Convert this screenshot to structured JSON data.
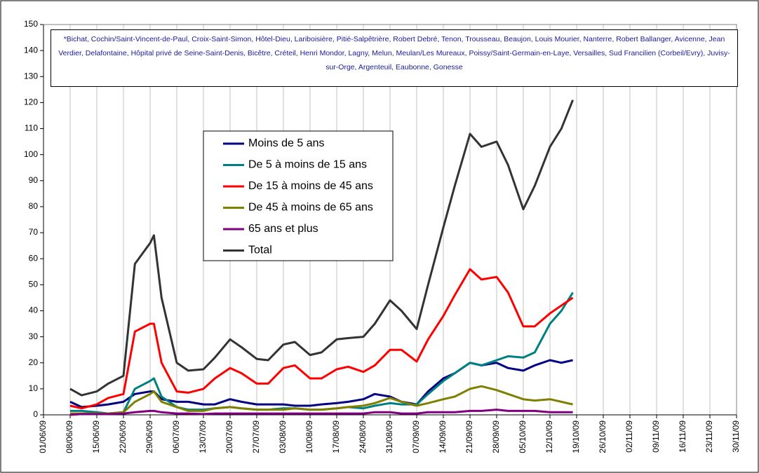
{
  "chart_data": {
    "type": "line",
    "note": "*Bichat, Cochin/Saint-Vincent-de-Paul, Croix-Saint-Simon, Hôtel-Dieu, Lariboisière, Pitié-Salpêtrière, Robert Debré, Tenon, Trousseau, Beaujon, Louis Mourier, Nanterre, Robert Ballanger, Avicenne, Jean Verdier, Delafontaine, Hôpital privé de Seine-Saint-Denis, Bicêtre, Créteil, Henri Mondor, Lagny, Melun, Meulan/Les Mureaux, Poissy/Saint-Germain-en-Laye, Versailles, Sud Francilien (Corbeil/Evry), Juvisy-sur-Orge, Argenteuil, Eaubonne, Gonesse",
    "x": [
      "08/06/09",
      "11/06/09",
      "15/06/09",
      "18/06/09",
      "22/06/09",
      "25/06/09",
      "29/06/09",
      "30/06/09",
      "02/07/09",
      "06/07/09",
      "09/07/09",
      "13/07/09",
      "16/07/09",
      "20/07/09",
      "23/07/09",
      "27/07/09",
      "30/07/09",
      "03/08/09",
      "06/08/09",
      "10/08/09",
      "13/08/09",
      "17/08/09",
      "20/08/09",
      "24/08/09",
      "27/08/09",
      "31/08/09",
      "03/09/09",
      "07/09/09",
      "10/09/09",
      "14/09/09",
      "17/09/09",
      "21/09/09",
      "24/09/09",
      "28/09/09",
      "01/10/09",
      "05/10/09",
      "08/10/09",
      "12/10/09",
      "15/10/09",
      "18/10/09"
    ],
    "series": [
      {
        "name": "Moins de 5 ans",
        "color": "#000080",
        "values": [
          5,
          3,
          3.5,
          4,
          5,
          8,
          9,
          9,
          6,
          5,
          5,
          4,
          4,
          6,
          5,
          4,
          4,
          4,
          3.5,
          3.5,
          4,
          4.5,
          5,
          6,
          8,
          7,
          5,
          4,
          9,
          14,
          16,
          20,
          19,
          20,
          18,
          17,
          19,
          21,
          20,
          21
        ]
      },
      {
        "name": "De 5 à moins de 15 ans",
        "color": "#008080",
        "values": [
          1.5,
          1.5,
          1,
          0.5,
          1,
          10,
          13,
          14,
          7,
          3,
          2,
          2,
          2.5,
          3,
          2.5,
          2,
          2,
          2.5,
          2.5,
          2,
          2,
          2.5,
          3,
          2.5,
          3.5,
          4.5,
          4,
          4,
          8,
          13,
          16,
          20,
          19,
          21,
          22.5,
          22,
          24,
          35,
          40,
          47
        ]
      },
      {
        "name": "De 15 à moins de 45 ans",
        "color": "#ff0000",
        "values": [
          3.5,
          2.5,
          4,
          6.5,
          8,
          32,
          35,
          35,
          20,
          9,
          8.5,
          10,
          14,
          18,
          16,
          12,
          12,
          18,
          19,
          14,
          14,
          17.5,
          18.5,
          16.5,
          19,
          25,
          25,
          20.5,
          29,
          38,
          46,
          56,
          52,
          53,
          47,
          34,
          34,
          39,
          42,
          45
        ]
      },
      {
        "name": "De 45 à moins de 65 ans",
        "color": "#808000",
        "values": [
          0.5,
          0.5,
          0.5,
          0.5,
          1,
          5,
          8,
          9,
          5,
          3,
          1.5,
          1.5,
          2.5,
          3,
          2.5,
          2,
          2,
          2,
          2.5,
          2,
          2,
          2.5,
          3,
          3.5,
          4.5,
          6.5,
          5,
          3.5,
          4.5,
          6,
          7,
          10,
          11,
          9.5,
          8,
          6,
          5.5,
          6,
          5,
          4
        ]
      },
      {
        "name": "65 ans et plus",
        "color": "#800080",
        "values": [
          0,
          0.3,
          0.3,
          0.3,
          0.5,
          1,
          1.5,
          1.5,
          1,
          0.5,
          0.5,
          0.3,
          0.5,
          0.5,
          0.5,
          0.5,
          0.5,
          0.5,
          0.5,
          0.5,
          0.5,
          0.5,
          0.5,
          0.5,
          1,
          1,
          0.5,
          0.5,
          1,
          1,
          1,
          1.5,
          1.5,
          2,
          1.5,
          1.5,
          1.5,
          1,
          1,
          1
        ]
      },
      {
        "name": "Total",
        "color": "#333333",
        "values": [
          10,
          7.5,
          9,
          12,
          15,
          58,
          66,
          69,
          45,
          20,
          17,
          17.5,
          22,
          29,
          26,
          21.5,
          21,
          27,
          28,
          23,
          24,
          29,
          29.5,
          30,
          35,
          44,
          40,
          33,
          50,
          72,
          88,
          108,
          103,
          105,
          96,
          79,
          88,
          103,
          110,
          121
        ]
      }
    ],
    "xlim": [
      "01/06/09",
      "30/11/09"
    ],
    "xticks": [
      "01/06/09",
      "08/06/09",
      "15/06/09",
      "22/06/09",
      "29/06/09",
      "06/07/09",
      "13/07/09",
      "20/07/09",
      "27/07/09",
      "03/08/09",
      "10/08/09",
      "17/08/09",
      "24/08/09",
      "31/08/09",
      "07/09/09",
      "14/09/09",
      "21/09/09",
      "28/09/09",
      "05/10/09",
      "12/10/09",
      "19/10/09",
      "26/10/09",
      "02/11/09",
      "09/11/09",
      "16/11/09",
      "23/11/09",
      "30/11/09"
    ],
    "ylim": [
      0,
      150
    ],
    "yticks": [
      0,
      10,
      20,
      30,
      40,
      50,
      60,
      70,
      80,
      90,
      100,
      110,
      120,
      130,
      140,
      150
    ],
    "grid": "x"
  }
}
